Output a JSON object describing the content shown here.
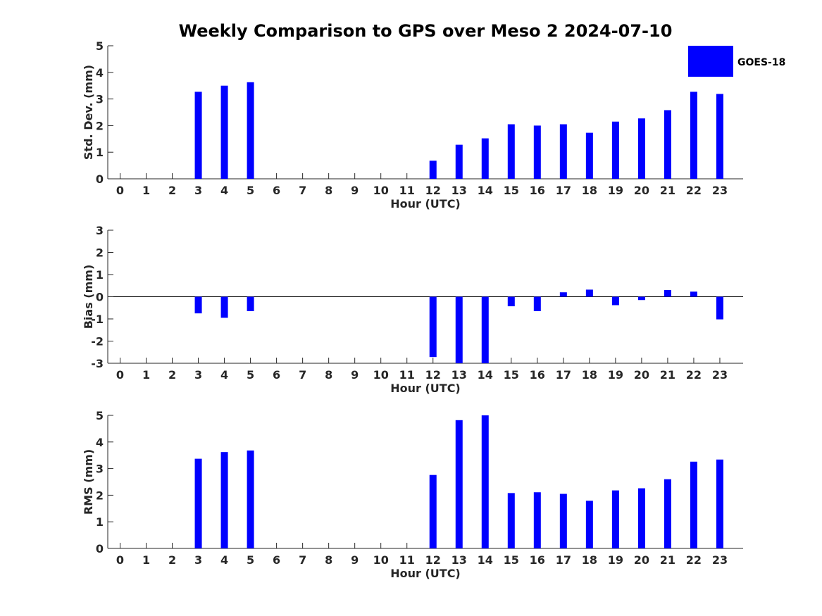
{
  "title": "Weekly Comparison to GPS over Meso 2 2024-07-10",
  "legend": {
    "label": "GOES-18",
    "color": "#0000ff"
  },
  "chart_data": [
    {
      "type": "bar",
      "name": "std",
      "categories": [
        "0",
        "1",
        "2",
        "3",
        "4",
        "5",
        "6",
        "7",
        "8",
        "9",
        "10",
        "11",
        "12",
        "13",
        "14",
        "15",
        "16",
        "17",
        "18",
        "19",
        "20",
        "21",
        "22",
        "23"
      ],
      "series": [
        {
          "name": "GOES-18",
          "values": [
            null,
            null,
            null,
            3.27,
            3.5,
            3.63,
            null,
            null,
            null,
            null,
            null,
            null,
            0.68,
            1.28,
            1.52,
            2.05,
            2.0,
            2.05,
            1.73,
            2.15,
            2.27,
            2.58,
            3.27,
            3.19
          ]
        }
      ],
      "xlabel": "Hour (UTC)",
      "ylabel": "Std. Dev. (mm)",
      "ylim": [
        0,
        5
      ],
      "yticks": [
        "0",
        "1",
        "2",
        "3",
        "4",
        "5"
      ],
      "yticks_values": [
        0,
        1,
        2,
        3,
        4,
        5
      ]
    },
    {
      "type": "bar",
      "name": "bias",
      "categories": [
        "0",
        "1",
        "2",
        "3",
        "4",
        "5",
        "6",
        "7",
        "8",
        "9",
        "10",
        "11",
        "12",
        "13",
        "14",
        "15",
        "16",
        "17",
        "18",
        "19",
        "20",
        "21",
        "22",
        "23"
      ],
      "series": [
        {
          "name": "GOES-18",
          "values": [
            null,
            null,
            null,
            -0.75,
            -0.95,
            -0.65,
            null,
            null,
            null,
            null,
            null,
            null,
            -2.72,
            -3.0,
            -3.0,
            -0.43,
            -0.65,
            0.2,
            0.32,
            -0.38,
            -0.15,
            0.3,
            0.23,
            -1.02
          ]
        }
      ],
      "xlabel": "Hour (UTC)",
      "ylabel": "Bias (mm)",
      "ylim": [
        -3,
        3
      ],
      "yticks": [
        "-3",
        "-2",
        "-1",
        "0",
        "1",
        "2",
        "3"
      ],
      "yticks_values": [
        -3,
        -2,
        -1,
        0,
        1,
        2,
        3
      ]
    },
    {
      "type": "bar",
      "name": "rms",
      "categories": [
        "0",
        "1",
        "2",
        "3",
        "4",
        "5",
        "6",
        "7",
        "8",
        "9",
        "10",
        "11",
        "12",
        "13",
        "14",
        "15",
        "16",
        "17",
        "18",
        "19",
        "20",
        "21",
        "22",
        "23"
      ],
      "series": [
        {
          "name": "GOES-18",
          "values": [
            null,
            null,
            null,
            3.37,
            3.62,
            3.68,
            null,
            null,
            null,
            null,
            null,
            null,
            2.76,
            4.82,
            5.0,
            2.08,
            2.11,
            2.05,
            1.79,
            2.18,
            2.26,
            2.6,
            3.26,
            3.34
          ]
        }
      ],
      "xlabel": "Hour (UTC)",
      "ylabel": "RMS (mm)",
      "ylim": [
        0,
        5
      ],
      "yticks": [
        "0",
        "1",
        "2",
        "3",
        "4",
        "5"
      ],
      "yticks_values": [
        0,
        1,
        2,
        3,
        4,
        5
      ]
    }
  ]
}
